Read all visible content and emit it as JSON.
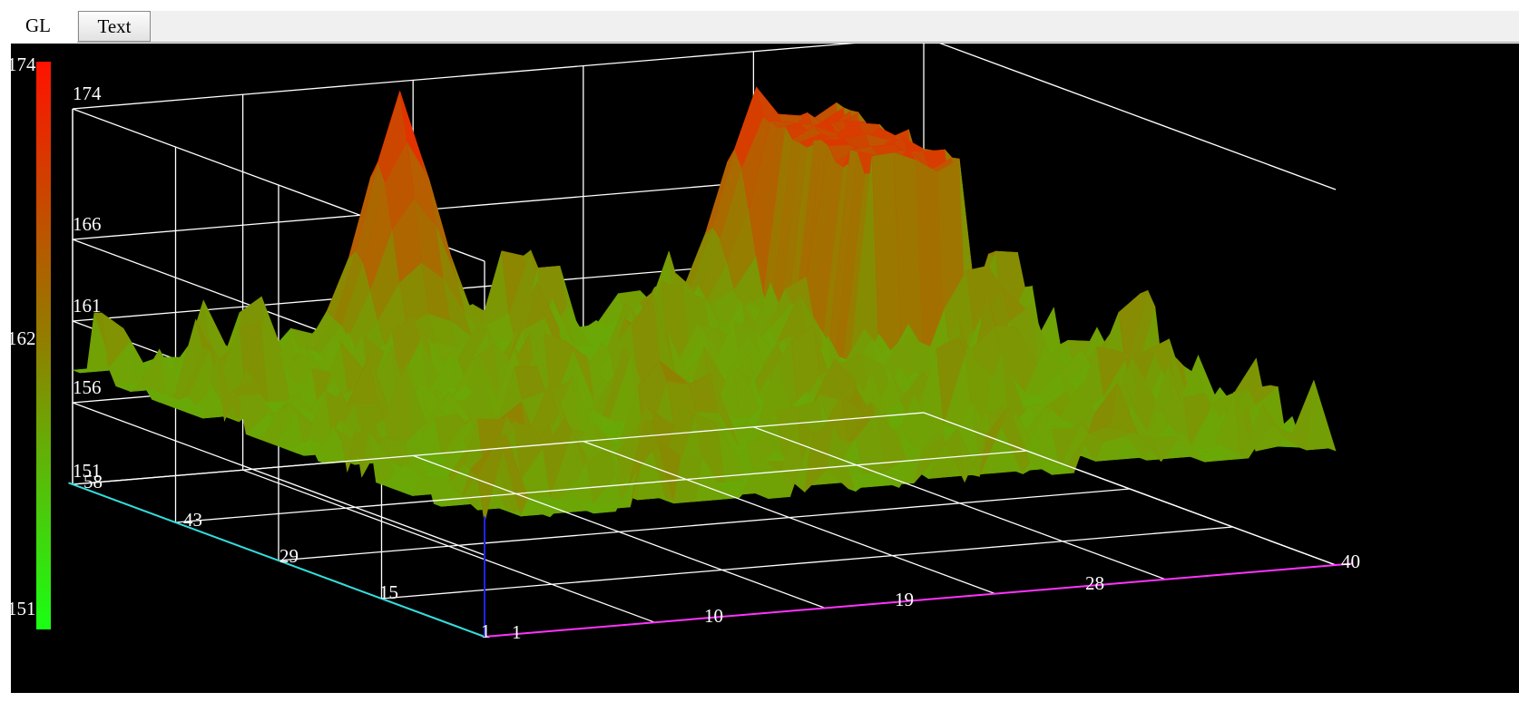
{
  "tabs": [
    {
      "label": "GL",
      "selected": true
    },
    {
      "label": "Text",
      "selected": false
    }
  ],
  "colors": {
    "low": "#22ee11",
    "high": "#ff1500",
    "grid": "#ffffff",
    "background": "#000000",
    "x_axis": "#ff33ff",
    "y_axis": "#33dddd",
    "z_axis": "#2222ee"
  },
  "color_scale": {
    "labels": [
      "174",
      "162",
      "151"
    ],
    "min": 151,
    "max": 174
  },
  "chart_data": {
    "type": "surface-3d",
    "z_range": [
      151,
      174
    ],
    "z_ticks": [
      "174",
      "166",
      "161",
      "156",
      "151"
    ],
    "x_ticks": [
      "1",
      "10",
      "19",
      "28",
      "40"
    ],
    "y_ticks": [
      "1",
      "15",
      "29",
      "43",
      "58"
    ],
    "grid": true,
    "legend": "color-bar-left",
    "notable_peaks": [
      {
        "x": 15,
        "y": 55,
        "z": 174
      },
      {
        "x": 32,
        "y": 57,
        "z": 172
      }
    ]
  }
}
